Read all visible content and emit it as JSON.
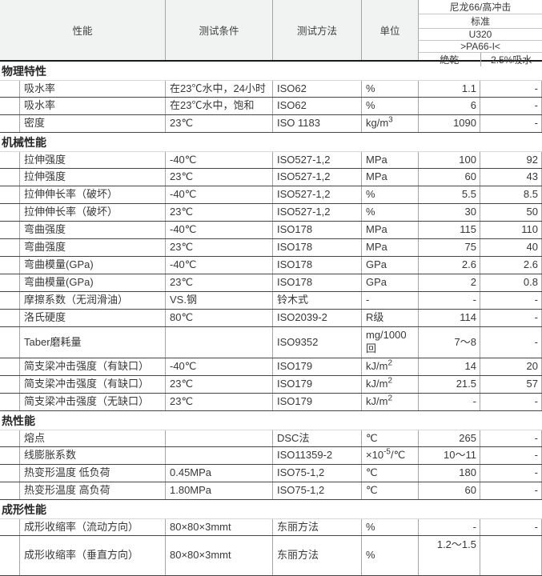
{
  "header": {
    "performance": "性能",
    "condition": "测试条件",
    "method": "测试方法",
    "unit": "单位",
    "product": {
      "family": "尼龙66/高冲击",
      "standard": "标准",
      "grade": "U320",
      "designation": ">PA66-I<",
      "state_dry": "絶乾",
      "state_wet": "2.5%吸水"
    }
  },
  "sections": [
    {
      "title": "物理特性",
      "rows": [
        {
          "property": "吸水率",
          "condition": "在23℃水中，24小时",
          "method": "ISO62",
          "unit": "%",
          "dry": "1.1",
          "wet": "-"
        },
        {
          "property": "吸水率",
          "condition": "在23℃水中，饱和",
          "method": "ISO62",
          "unit": "%",
          "dry": "6",
          "wet": "-"
        },
        {
          "property": "密度",
          "condition": "23℃",
          "method": "ISO 1183",
          "unit": {
            "text": "kg/m",
            "sup": "3"
          },
          "dry": "1090",
          "wet": "-"
        }
      ]
    },
    {
      "title": "机械性能",
      "rows": [
        {
          "property": "拉伸强度",
          "condition": "-40℃",
          "method": "ISO527-1,2",
          "unit": "MPa",
          "dry": "100",
          "wet": "92"
        },
        {
          "property": "拉伸强度",
          "condition": "23℃",
          "method": "ISO527-1,2",
          "unit": "MPa",
          "dry": "60",
          "wet": "43"
        },
        {
          "property": "拉伸伸长率（破坏）",
          "condition": "-40℃",
          "method": "ISO527-1,2",
          "unit": "%",
          "dry": "5.5",
          "wet": "8.5"
        },
        {
          "property": "拉伸伸长率（破坏）",
          "condition": "23℃",
          "method": "ISO527-1,2",
          "unit": "%",
          "dry": "30",
          "wet": "50"
        },
        {
          "property": "弯曲强度",
          "condition": "-40℃",
          "method": "ISO178",
          "unit": "MPa",
          "dry": "115",
          "wet": "110"
        },
        {
          "property": "弯曲强度",
          "condition": "23℃",
          "method": "ISO178",
          "unit": "MPa",
          "dry": "75",
          "wet": "40"
        },
        {
          "property": "弯曲模量(GPa)",
          "condition": "-40℃",
          "method": "ISO178",
          "unit": "GPa",
          "dry": "2.6",
          "wet": "2.6"
        },
        {
          "property": "弯曲模量(GPa)",
          "condition": "23℃",
          "method": "ISO178",
          "unit": "GPa",
          "dry": "2",
          "wet": "0.8"
        },
        {
          "property": "摩擦系数（无润滑油）",
          "condition": "VS.钢",
          "method": "铃木式",
          "unit": "-",
          "dry": "-",
          "wet": "-"
        },
        {
          "property": "洛氏硬度",
          "condition": "80℃",
          "method": "ISO2039-2",
          "unit": "R级",
          "dry": "114",
          "wet": "-"
        },
        {
          "property": "Taber磨耗量",
          "condition": "",
          "method": "ISO9352",
          "unit": {
            "text": "mg/1000",
            "line2": "回"
          },
          "dry": "7〜8",
          "wet": "-"
        },
        {
          "property": "简支梁冲击强度（有缺口）",
          "condition": "-40℃",
          "method": "ISO179",
          "unit": {
            "text": "kJ/m",
            "sup": "2"
          },
          "dry": "14",
          "wet": "20"
        },
        {
          "property": "简支梁冲击强度（有缺口）",
          "condition": "23℃",
          "method": "ISO179",
          "unit": {
            "text": "kJ/m",
            "sup": "2"
          },
          "dry": "21.5",
          "wet": "57"
        },
        {
          "property": "简支梁冲击强度（无缺口）",
          "condition": "23℃",
          "method": "ISO179",
          "unit": {
            "text": "kJ/m",
            "sup": "2"
          },
          "dry": "-",
          "wet": "-"
        }
      ]
    },
    {
      "title": "热性能",
      "rows": [
        {
          "property": "熔点",
          "condition": "",
          "method": "DSC法",
          "unit": "℃",
          "dry": "265",
          "wet": "-"
        },
        {
          "property": "线膨胀系数",
          "condition": "",
          "method": "ISO11359-2",
          "unit": {
            "text": "×10",
            "sup": "-5",
            "tail": "/℃"
          },
          "dry": "10〜11",
          "wet": "-"
        },
        {
          "property": "热变形温度 低负荷",
          "condition": "0.45MPa",
          "method": "ISO75-1,2",
          "unit": "℃",
          "dry": "180",
          "wet": "-"
        },
        {
          "property": "热变形温度 高负荷",
          "condition": "1.80MPa",
          "method": "ISO75-1,2",
          "unit": "℃",
          "dry": "60",
          "wet": "-"
        }
      ]
    },
    {
      "title": "成形性能",
      "rows": [
        {
          "property": "成形收缩率（流动方向）",
          "condition": "80×80×3mmt",
          "method": "东丽方法",
          "unit": "%",
          "dry": "-",
          "wet": "-"
        },
        {
          "property": "成形收缩率（垂直方向）",
          "condition": "80×80×3mmt",
          "method": "东丽方法",
          "unit": "%",
          "dry": "1.2〜1.5",
          "wet": "",
          "tall": true,
          "dry_top": true
        }
      ]
    }
  ]
}
